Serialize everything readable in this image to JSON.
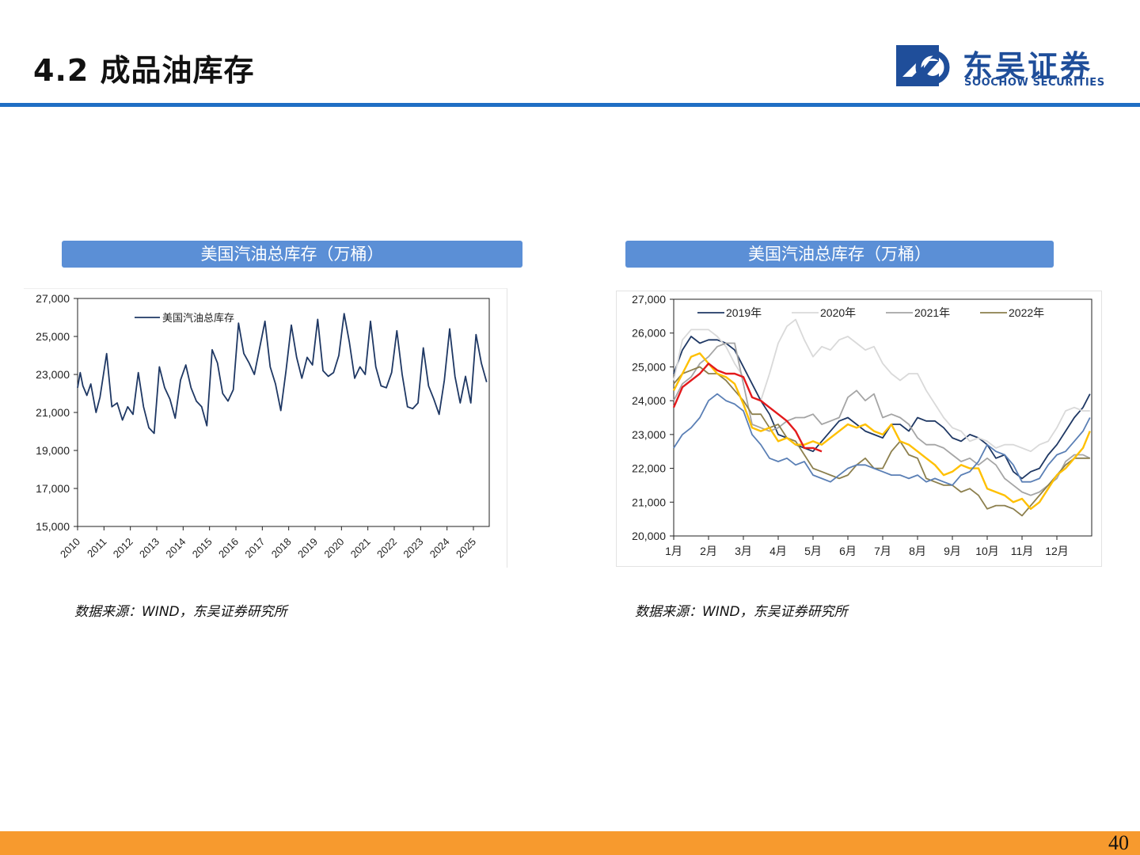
{
  "slide": {
    "title": "4.2 成品油库存",
    "page_number": "40"
  },
  "logo": {
    "cn": "东吴证券",
    "en": "SOOCHOW SECURITIES"
  },
  "colors": {
    "brand_blue": "#1f4e9a",
    "rule_blue": "#1f6ec4",
    "header_blue": "#5b8fd6",
    "bottom_orange": "#f79a2e"
  },
  "charts": {
    "left": {
      "header": "美国汽油总库存（万桶）",
      "source": "数据来源：WIND，东吴证券研究所"
    },
    "right": {
      "header": "美国汽油总库存（万桶）",
      "source": "数据来源：WIND，东吴证券研究所"
    }
  },
  "chart_data": [
    {
      "type": "line",
      "ylim": [
        15000,
        27000
      ],
      "yticks": [
        "15,000",
        "17,000",
        "19,000",
        "21,000",
        "23,000",
        "25,000",
        "27,000"
      ],
      "xlim": [
        2010,
        2025.6
      ],
      "xticks": [
        "2010",
        "2011",
        "2012",
        "2013",
        "2014",
        "2015",
        "2016",
        "2017",
        "2018",
        "2019",
        "2020",
        "2021",
        "2022",
        "2023",
        "2024",
        "2025"
      ],
      "legend": "top-left",
      "series": [
        {
          "name": "美国汽油总库存",
          "color": "#1f3864",
          "x": [
            2010,
            2010.1,
            2010.2,
            2010.35,
            2010.5,
            2010.7,
            2010.85,
            2011.1,
            2011.3,
            2011.5,
            2011.7,
            2011.9,
            2012.1,
            2012.3,
            2012.5,
            2012.7,
            2012.9,
            2013.1,
            2013.3,
            2013.5,
            2013.7,
            2013.9,
            2014.1,
            2014.3,
            2014.5,
            2014.7,
            2014.9,
            2015.1,
            2015.3,
            2015.5,
            2015.7,
            2015.9,
            2016.1,
            2016.3,
            2016.5,
            2016.7,
            2016.9,
            2017.1,
            2017.3,
            2017.5,
            2017.7,
            2017.9,
            2018.1,
            2018.3,
            2018.5,
            2018.7,
            2018.9,
            2019.1,
            2019.3,
            2019.5,
            2019.7,
            2019.9,
            2020.1,
            2020.3,
            2020.5,
            2020.7,
            2020.9,
            2021.1,
            2021.3,
            2021.5,
            2021.7,
            2021.9,
            2022.1,
            2022.3,
            2022.5,
            2022.7,
            2022.9,
            2023.1,
            2023.3,
            2023.5,
            2023.7,
            2023.9,
            2024.1,
            2024.3,
            2024.5,
            2024.7,
            2024.9,
            2025.1,
            2025.3,
            2025.5
          ],
          "y": [
            22300,
            23100,
            22400,
            21900,
            22500,
            21000,
            21800,
            24100,
            21300,
            21500,
            20600,
            21300,
            20900,
            23100,
            21300,
            20200,
            19900,
            23400,
            22300,
            21700,
            20700,
            22700,
            23500,
            22300,
            21600,
            21300,
            20300,
            24300,
            23600,
            22000,
            21600,
            22200,
            25700,
            24100,
            23600,
            23000,
            24400,
            25800,
            23400,
            22500,
            21100,
            23200,
            25600,
            23900,
            22800,
            23900,
            23500,
            25900,
            23200,
            22900,
            23100,
            24000,
            26200,
            24700,
            22800,
            23400,
            23000,
            25800,
            23400,
            22400,
            22300,
            23100,
            25300,
            23000,
            21300,
            21200,
            21500,
            24400,
            22400,
            21700,
            20900,
            22700,
            25400,
            22900,
            21500,
            22900,
            21500,
            25100,
            23600,
            22600
          ]
        }
      ]
    },
    {
      "type": "line",
      "ylim": [
        20000,
        27000
      ],
      "yticks": [
        "20,000",
        "21,000",
        "22,000",
        "23,000",
        "24,000",
        "25,000",
        "26,000",
        "27,000"
      ],
      "xlim": [
        1,
        13
      ],
      "xticks": [
        "1月",
        "2月",
        "3月",
        "4月",
        "5月",
        "6月",
        "7月",
        "8月",
        "9月",
        "10月",
        "11月",
        "12月"
      ],
      "legend": "top",
      "series": [
        {
          "name": "2019年",
          "color": "#1f3864",
          "x": [
            1,
            1.25,
            1.5,
            1.75,
            2,
            2.25,
            2.5,
            2.75,
            3,
            3.25,
            3.5,
            3.75,
            4,
            4.25,
            4.5,
            4.75,
            5,
            5.25,
            5.5,
            5.75,
            6,
            6.25,
            6.5,
            6.75,
            7,
            7.25,
            7.5,
            7.75,
            8,
            8.25,
            8.5,
            8.75,
            9,
            9.25,
            9.5,
            9.75,
            10,
            10.25,
            10.5,
            10.75,
            11,
            11.25,
            11.5,
            11.75,
            12,
            12.25,
            12.5,
            12.75,
            12.95
          ],
          "y": [
            24800,
            25500,
            25900,
            25700,
            25800,
            25800,
            25700,
            25500,
            25000,
            24500,
            24000,
            23600,
            23000,
            22900,
            22700,
            22600,
            22500,
            22800,
            23100,
            23400,
            23500,
            23300,
            23100,
            23000,
            22900,
            23300,
            23300,
            23100,
            23500,
            23400,
            23400,
            23200,
            22900,
            22800,
            23000,
            22900,
            22700,
            22300,
            22400,
            21900,
            21700,
            21900,
            22000,
            22400,
            22700,
            23100,
            23500,
            23800,
            24200
          ]
        },
        {
          "name": "2020年",
          "color": "#d9d9d9",
          "x": [
            1,
            1.25,
            1.5,
            1.75,
            2,
            2.25,
            2.5,
            2.75,
            3,
            3.25,
            3.5,
            3.75,
            4,
            4.25,
            4.5,
            4.75,
            5,
            5.25,
            5.5,
            5.75,
            6,
            6.25,
            6.5,
            6.75,
            7,
            7.25,
            7.5,
            7.75,
            8,
            8.25,
            8.5,
            8.75,
            9,
            9.25,
            9.5,
            9.75,
            10,
            10.25,
            10.5,
            10.75,
            11,
            11.25,
            11.5,
            11.75,
            12,
            12.25,
            12.5,
            12.75,
            12.95
          ],
          "y": [
            24600,
            25800,
            26100,
            26100,
            26100,
            25900,
            25600,
            25100,
            24700,
            24100,
            24000,
            24800,
            25700,
            26200,
            26400,
            25800,
            25300,
            25600,
            25500,
            25800,
            25900,
            25700,
            25500,
            25600,
            25100,
            24800,
            24600,
            24800,
            24800,
            24300,
            23900,
            23500,
            23200,
            23100,
            22800,
            22900,
            22800,
            22600,
            22700,
            22700,
            22600,
            22500,
            22700,
            22800,
            23200,
            23700,
            23800,
            23700,
            23700
          ]
        },
        {
          "name": "2021年",
          "color": "#a5a5a5",
          "x": [
            1,
            1.25,
            1.5,
            1.75,
            2,
            2.25,
            2.5,
            2.75,
            3,
            3.25,
            3.5,
            3.75,
            4,
            4.25,
            4.5,
            4.75,
            5,
            5.25,
            5.5,
            5.75,
            6,
            6.25,
            6.5,
            6.75,
            7,
            7.25,
            7.5,
            7.75,
            8,
            8.25,
            8.5,
            8.75,
            9,
            9.25,
            9.5,
            9.75,
            10,
            10.25,
            10.5,
            10.75,
            11,
            11.25,
            11.5,
            11.75,
            12,
            12.25,
            12.5,
            12.75,
            12.95
          ],
          "y": [
            24000,
            24500,
            24700,
            25100,
            25300,
            25600,
            25700,
            25700,
            24500,
            23300,
            23200,
            23100,
            23200,
            23400,
            23500,
            23500,
            23600,
            23300,
            23400,
            23500,
            24100,
            24300,
            24000,
            24200,
            23500,
            23600,
            23500,
            23300,
            22900,
            22700,
            22700,
            22600,
            22400,
            22200,
            22300,
            22100,
            22300,
            22100,
            21700,
            21500,
            21300,
            21200,
            21300,
            21500,
            21700,
            22200,
            22400,
            22400,
            22300
          ]
        },
        {
          "name": "2022年",
          "color": "#8c7f4d",
          "x": [
            1,
            1.25,
            1.5,
            1.75,
            2,
            2.25,
            2.5,
            2.75,
            3,
            3.25,
            3.5,
            3.75,
            4,
            4.25,
            4.5,
            4.75,
            5,
            5.25,
            5.5,
            5.75,
            6,
            6.25,
            6.5,
            6.75,
            7,
            7.25,
            7.5,
            7.75,
            8,
            8.25,
            8.5,
            8.75,
            9,
            9.25,
            9.5,
            9.75,
            10,
            10.25,
            10.5,
            10.75,
            11,
            11.25,
            11.5,
            11.75,
            12,
            12.25,
            12.5,
            12.75,
            12.95
          ],
          "y": [
            24500,
            24800,
            24900,
            25000,
            24800,
            24800,
            24600,
            24300,
            24000,
            23600,
            23600,
            23200,
            23300,
            22900,
            22800,
            22400,
            22000,
            21900,
            21800,
            21700,
            21800,
            22100,
            22300,
            22000,
            22000,
            22500,
            22800,
            22400,
            22300,
            21700,
            21600,
            21500,
            21500,
            21300,
            21400,
            21200,
            20800,
            20900,
            20900,
            20800,
            20600,
            20900,
            21200,
            21500,
            21800,
            22100,
            22300,
            22300,
            22300
          ]
        },
        {
          "name": "",
          "color": "#ffc000",
          "x": [
            1,
            1.25,
            1.5,
            1.75,
            2,
            2.25,
            2.5,
            2.75,
            3,
            3.25,
            3.5,
            3.75,
            4,
            4.25,
            4.5,
            4.75,
            5,
            5.25,
            5.5,
            5.75,
            6,
            6.25,
            6.5,
            6.75,
            7,
            7.25,
            7.5,
            7.75,
            8,
            8.25,
            8.5,
            8.75,
            9,
            9.25,
            9.5,
            9.75,
            10,
            10.25,
            10.5,
            10.75,
            11,
            11.25,
            11.5,
            11.75,
            12,
            12.25,
            12.5,
            12.75,
            12.95
          ],
          "y": [
            24300,
            24800,
            25300,
            25400,
            25100,
            24800,
            24700,
            24500,
            23900,
            23200,
            23100,
            23200,
            22800,
            22900,
            22700,
            22700,
            22800,
            22700,
            22900,
            23100,
            23300,
            23200,
            23300,
            23100,
            23000,
            23300,
            22800,
            22700,
            22500,
            22300,
            22100,
            21800,
            21900,
            22100,
            22000,
            22000,
            21400,
            21300,
            21200,
            21000,
            21100,
            20800,
            21000,
            21400,
            21800,
            22000,
            22300,
            22600,
            23100
          ]
        },
        {
          "name": "",
          "color": "#5a7fb5",
          "x": [
            1,
            1.25,
            1.5,
            1.75,
            2,
            2.25,
            2.5,
            2.75,
            3,
            3.25,
            3.5,
            3.75,
            4,
            4.25,
            4.5,
            4.75,
            5,
            5.25,
            5.5,
            5.75,
            6,
            6.25,
            6.5,
            6.75,
            7,
            7.25,
            7.5,
            7.75,
            8,
            8.25,
            8.5,
            8.75,
            9,
            9.25,
            9.5,
            9.75,
            10,
            10.25,
            10.5,
            10.75,
            11,
            11.25,
            11.5,
            11.75,
            12,
            12.25,
            12.5,
            12.75,
            12.95
          ],
          "y": [
            22600,
            23000,
            23200,
            23500,
            24000,
            24200,
            24000,
            23900,
            23700,
            23000,
            22700,
            22300,
            22200,
            22300,
            22100,
            22200,
            21800,
            21700,
            21600,
            21800,
            22000,
            22100,
            22100,
            22000,
            21900,
            21800,
            21800,
            21700,
            21800,
            21600,
            21700,
            21600,
            21500,
            21800,
            21900,
            22200,
            22700,
            22500,
            22400,
            22100,
            21600,
            21600,
            21700,
            22100,
            22400,
            22500,
            22800,
            23100,
            23500
          ]
        },
        {
          "name": "",
          "color": "#e31a1c",
          "x": [
            1,
            1.25,
            1.5,
            1.75,
            2,
            2.25,
            2.5,
            2.75,
            3,
            3.25,
            3.5,
            3.75,
            4,
            4.25,
            4.5,
            4.75,
            5,
            5.25
          ],
          "y": [
            23800,
            24400,
            24600,
            24800,
            25100,
            24900,
            24800,
            24800,
            24700,
            24100,
            24000,
            23800,
            23600,
            23400,
            23100,
            22600,
            22600,
            22500
          ]
        }
      ]
    }
  ]
}
